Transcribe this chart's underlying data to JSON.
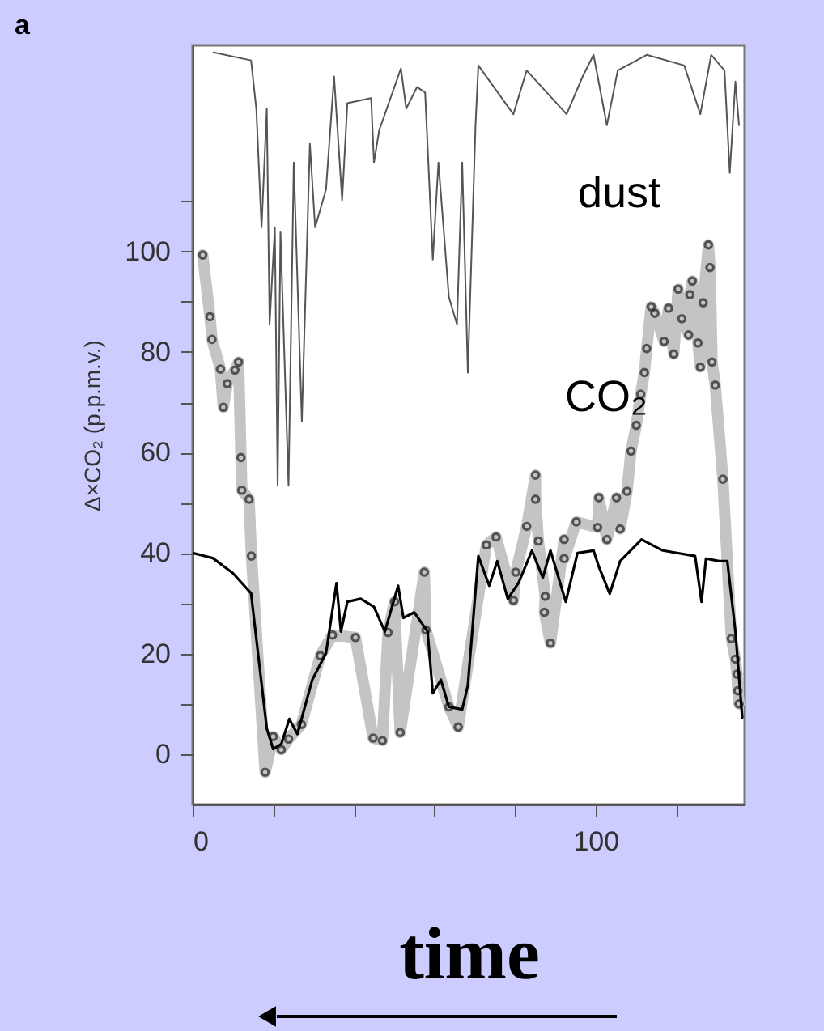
{
  "chart_data": {
    "type": "line",
    "xlabel": "time",
    "ylabel": "Δ×CO₂ (p.p.m.v.)",
    "annotations": [
      "a",
      "dust",
      "CO₂"
    ],
    "line_style": "solid",
    "xlim": [
      0,
      137
    ],
    "ylim": [
      -10,
      141
    ],
    "xticks": [
      0,
      {
        "value": 20,
        "label": null
      },
      {
        "value": 40,
        "label": null
      },
      {
        "value": 60,
        "label": null
      },
      {
        "value": 80,
        "label": null
      },
      100,
      {
        "value": 120,
        "label": null
      }
    ],
    "yticks": [
      0,
      {
        "value": 10,
        "label": null
      },
      20,
      {
        "value": 30,
        "label": null
      },
      40,
      {
        "value": 50,
        "label": null
      },
      60,
      {
        "value": 70,
        "label": null
      },
      80,
      {
        "value": 90,
        "label": null
      },
      100,
      {
        "value": 110,
        "label": null
      }
    ],
    "grid": false,
    "series": [
      {
        "color": "#555555",
        "marker": "none",
        "x": [
          5.2,
          14.5,
          15.8,
          17.1,
          18.4,
          19.1,
          20.4,
          21.1,
          21.8,
          23.8,
          25.1,
          27.1,
          29.1,
          30.4,
          33.1,
          35.1,
          37.1,
          38.4,
          44.3,
          45,
          46.3,
          51.7,
          53,
          55.7,
          57.7,
          59.6,
          61,
          63.6,
          65.6,
          66.9,
          68.3,
          70.2,
          70.9,
          79.6,
          82.9,
          92.8,
          96.8,
          99.5,
          102.8,
          105.5,
          112.7,
          122,
          126,
          128.7,
          132,
          133.3,
          134.7,
          135.6
        ],
        "values": [
          139.6,
          138,
          128.4,
          104.8,
          128.4,
          85.5,
          104.8,
          53.4,
          103.8,
          53.4,
          117.7,
          66.2,
          121.4,
          104.8,
          112.3,
          134.8,
          110.2,
          129.5,
          130.5,
          117.7,
          124.1,
          136.4,
          128.4,
          132.7,
          131.6,
          98.4,
          117.7,
          90.9,
          85.5,
          117.7,
          75.9,
          125.1,
          137,
          127.3,
          136,
          127.3,
          134.8,
          139.1,
          125.1,
          136,
          139.1,
          137,
          127.3,
          139.1,
          136,
          115.6,
          133.8,
          125.1
        ]
      },
      {
        "color": "#c4c4c4",
        "marker": "circle",
        "x": [
          2.5,
          4.3,
          4.8,
          6.9,
          7.6,
          8.6,
          10.5,
          11.4,
          12,
          12.2,
          14,
          14.6,
          18,
          20,
          22,
          23.8,
          27,
          31.7,
          34.7,
          40.4,
          44.8,
          47.1,
          48.5,
          50.1,
          51.5,
          57.5,
          57.9,
          63.6,
          65.9,
          72.9,
          75.3,
          79.6,
          80.2,
          82.9,
          85.1,
          85.1,
          85.8,
          87.5,
          87.3,
          88.8,
          92.2,
          92.2,
          95.2,
          100.5,
          100.8,
          102.8,
          105.2,
          106.1,
          107.8,
          108.8,
          110.1,
          111.2,
          112.1,
          112.7,
          113.8,
          114.7,
          117,
          118.1,
          119.4,
          120.5,
          121.4,
          123.1,
          123.4,
          124,
          125.4,
          126,
          126.7,
          128,
          128.4,
          128.9,
          129.7,
          131.6,
          133.7,
          134.7,
          135.1,
          135.3,
          135.6
        ],
        "values": [
          99.3,
          87,
          82.5,
          76.6,
          69,
          73.7,
          76.4,
          78,
          59,
          52.5,
          50.7,
          39.4,
          -3.6,
          3.5,
          0.9,
          3,
          5.9,
          19.6,
          23.7,
          23.2,
          3.2,
          2.7,
          24.2,
          30.3,
          4.3,
          36.2,
          24.7,
          9.4,
          5.4,
          41.6,
          43.2,
          30.6,
          36.2,
          45.3,
          55.5,
          50.7,
          42.4,
          31.4,
          28.2,
          22.1,
          42.7,
          38.9,
          46.2,
          45.1,
          51,
          42.7,
          51,
          44.8,
          52.3,
          60.3,
          65.4,
          71.6,
          75.9,
          80.7,
          89,
          87.7,
          82.1,
          88.7,
          79.6,
          92.5,
          86.6,
          83.4,
          91.4,
          94.1,
          81.8,
          77,
          89.8,
          101.3,
          96.8,
          78,
          73.4,
          54.7,
          23,
          18.9,
          15.9,
          12.6,
          10
        ]
      },
      {
        "color": "#000000",
        "marker": "none",
        "x": [
          0,
          5,
          10,
          14.5,
          18.4,
          20,
          22,
          24,
          26,
          29.7,
          33.1,
          35.7,
          36.8,
          38.4,
          41.7,
          45,
          47.7,
          51,
          52.3,
          55,
          58.3,
          59.6,
          61.6,
          63.6,
          66.9,
          68.3,
          70.9,
          73.6,
          75.6,
          78.2,
          80.9,
          84.2,
          86.9,
          88.8,
          92.6,
          95.5,
          99.5,
          100.8,
          103.5,
          106.1,
          111.4,
          116.7,
          124.7,
          126.3,
          127.4,
          130.7,
          132.7,
          134.7,
          136.4
        ],
        "values": [
          40,
          39,
          36,
          32,
          5.1,
          1,
          2,
          7,
          4,
          14.8,
          20.1,
          34,
          24.4,
          30.3,
          30.9,
          29.3,
          24.4,
          33.5,
          27.1,
          28.2,
          24.4,
          12.1,
          14.8,
          9.4,
          8.9,
          13.7,
          39.4,
          33.5,
          38.4,
          30.9,
          34.1,
          40.5,
          35.1,
          40.5,
          30.3,
          40,
          40.5,
          37.3,
          31.9,
          38.4,
          42.7,
          40.5,
          39.4,
          30.3,
          38.9,
          38.4,
          38.4,
          24.4,
          7.3
        ]
      }
    ]
  }
}
